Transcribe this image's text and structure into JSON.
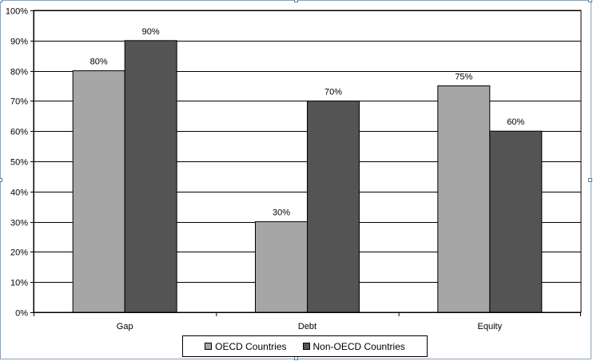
{
  "chart_data": {
    "type": "bar",
    "title": "",
    "xlabel": "",
    "ylabel": "",
    "categories": [
      "Gap",
      "Debt",
      "Equity"
    ],
    "series": [
      {
        "name": "OECD Countries",
        "values": [
          80,
          30,
          75
        ],
        "color": "#a6a6a6"
      },
      {
        "name": "Non-OECD Countries",
        "values": [
          90,
          70,
          60
        ],
        "color": "#545454"
      }
    ],
    "ylim": [
      0,
      100
    ],
    "yticks": [
      "0%",
      "10%",
      "20%",
      "30%",
      "40%",
      "50%",
      "60%",
      "70%",
      "80%",
      "90%",
      "100%"
    ],
    "data_labels": [
      [
        "80%",
        "30%",
        "75%"
      ],
      [
        "90%",
        "70%",
        "60%"
      ]
    ],
    "grid": true,
    "legend_position": "bottom"
  }
}
